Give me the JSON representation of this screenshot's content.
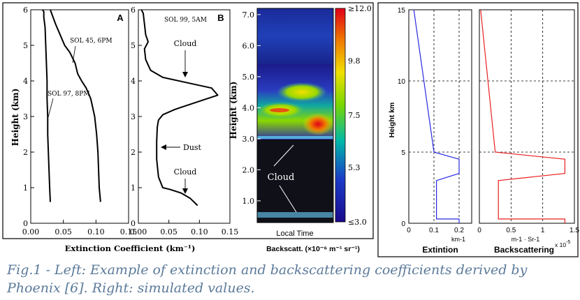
{
  "panel_a": {
    "letter": "A",
    "annotations": {
      "sol45": "SOL 45, 6PM",
      "sol97": "SOL 97, 8PM"
    },
    "ylabel": "Height (km)",
    "yticks": [
      "0",
      "1",
      "2",
      "3",
      "4",
      "5",
      "6"
    ],
    "xticks": [
      "0.00",
      "0.05",
      "0.10",
      "0.15"
    ]
  },
  "panel_b": {
    "letter": "B",
    "annotations": {
      "title": "SOL 99, 5AM",
      "cloud_upper": "Cloud",
      "dust": "Dust",
      "cloud_lower": "Cloud"
    },
    "yticks": [
      "0",
      "1",
      "2",
      "3",
      "4",
      "5",
      "6"
    ],
    "xticks": [
      "0.00",
      "0.05",
      "0.10",
      "0.15"
    ]
  },
  "shared_xlabel": "Extinction Coefficient (km⁻¹)",
  "lidar": {
    "ylabel": "Height (km)",
    "yticks": [
      "1.0",
      "2.0",
      "3.0",
      "4.0",
      "5.0",
      "6.0",
      "7.0"
    ],
    "xlabel": "Local Time",
    "cloud_label": "Cloud",
    "colorbar_ticks": [
      "≥12.0",
      "9.8",
      "7.5",
      "5.3",
      "≤3.0"
    ],
    "colorbar_label": "Backscatt. (×10⁻⁶ m⁻¹ sr⁻¹)",
    "colors": [
      "#e0001a",
      "#f07a00",
      "#f0e000",
      "#7ad800",
      "#00b8a8",
      "#1a3cc8",
      "#1a0a8c"
    ]
  },
  "sim_ext": {
    "yticks": [
      "0",
      "5",
      "10",
      "15"
    ],
    "ylabel": "Height km",
    "xticks": [
      "0",
      "0.1",
      "0.2"
    ],
    "unit": "km-1",
    "title": "Extintion",
    "color": "#2a2ae0"
  },
  "sim_back": {
    "xticks": [
      "0",
      "0.5",
      "1",
      "1.5"
    ],
    "unit": "m-1 · Sr-1",
    "exponent": "x 10",
    "exponent_power": "-5",
    "title": "Backscattering",
    "color": "#e82020"
  },
  "caption": "Fig.1 - Left: Example of extinction and backscattering coefficients derived by Phoenix [6]. Right: simulated values.",
  "chart_data": [
    {
      "type": "line",
      "xlabel": "Extinction Coefficient (km⁻¹)",
      "ylabel": "Height (km)",
      "xlim": [
        0,
        0.15
      ],
      "ylim": [
        0,
        6
      ],
      "series": [
        {
          "name": "SOL 45, 6PM",
          "x": [
            0.107,
            0.105,
            0.104,
            0.103,
            0.101,
            0.098,
            0.092,
            0.085,
            0.078,
            0.072,
            0.068,
            0.06,
            0.052,
            0.045,
            0.038,
            0.032,
            0.03
          ],
          "y": [
            0.6,
            1.0,
            1.5,
            2.0,
            2.5,
            3.0,
            3.5,
            3.8,
            4.0,
            4.2,
            4.5,
            4.8,
            5.0,
            5.3,
            5.6,
            5.9,
            6.0
          ]
        },
        {
          "name": "SOL 97, 8PM",
          "x": [
            0.03,
            0.029,
            0.028,
            0.027,
            0.026,
            0.026,
            0.025,
            0.025,
            0.024,
            0.023,
            0.022,
            0.02,
            0.02,
            0.018
          ],
          "y": [
            0.6,
            1.0,
            1.5,
            2.0,
            2.5,
            3.0,
            3.5,
            4.0,
            4.5,
            5.0,
            5.5,
            5.8,
            5.95,
            6.0
          ]
        }
      ]
    },
    {
      "type": "line",
      "xlabel": "Extinction Coefficient (km⁻¹)",
      "xlim": [
        0,
        0.15
      ],
      "ylim": [
        0,
        6
      ],
      "series": [
        {
          "name": "SOL 99, 5AM",
          "x": [
            0.097,
            0.085,
            0.07,
            0.052,
            0.04,
            0.033,
            0.03,
            0.03,
            0.031,
            0.033,
            0.04,
            0.06,
            0.095,
            0.13,
            0.12,
            0.08,
            0.04,
            0.02,
            0.012,
            0.01,
            0.016,
            0.012,
            0.01,
            0.008,
            0.005
          ],
          "y": [
            0.5,
            0.7,
            0.85,
            0.95,
            1.0,
            1.3,
            1.8,
            2.3,
            2.7,
            2.9,
            3.05,
            3.2,
            3.4,
            3.6,
            3.8,
            3.95,
            4.1,
            4.3,
            4.6,
            4.9,
            5.1,
            5.3,
            5.6,
            5.9,
            6.0
          ]
        }
      ]
    },
    {
      "type": "heatmap",
      "ylabel": "Height (km)",
      "xlabel": "Local Time",
      "ylim": [
        0.3,
        7.2
      ],
      "colorbar": {
        "min": 3.0,
        "max": 12.0,
        "ticks": [
          12.0,
          9.8,
          7.5,
          5.3,
          3.0
        ]
      }
    },
    {
      "type": "line",
      "title": "Extintion",
      "ylabel": "Height km",
      "xlabel": "km-1",
      "xlim": [
        0,
        0.25
      ],
      "ylim": [
        0,
        15
      ],
      "grid": true,
      "series": [
        {
          "x": [
            0.02,
            0.1,
            0.2,
            0.2,
            0.11,
            0.11,
            0.2,
            0.2
          ],
          "y": [
            15,
            5,
            4.5,
            3.5,
            3,
            0.3,
            0.3,
            0
          ]
        }
      ]
    },
    {
      "type": "line",
      "title": "Backscattering",
      "xlabel": "m-1 · Sr-1 x 10^-5",
      "xlim": [
        0,
        1.5
      ],
      "ylim": [
        0,
        15
      ],
      "grid": true,
      "series": [
        {
          "x": [
            0.02,
            0.25,
            1.35,
            1.35,
            0.3,
            0.3,
            1.35,
            1.35
          ],
          "y": [
            15,
            5,
            4.5,
            3.5,
            3,
            0.3,
            0.3,
            0
          ]
        }
      ]
    }
  ]
}
